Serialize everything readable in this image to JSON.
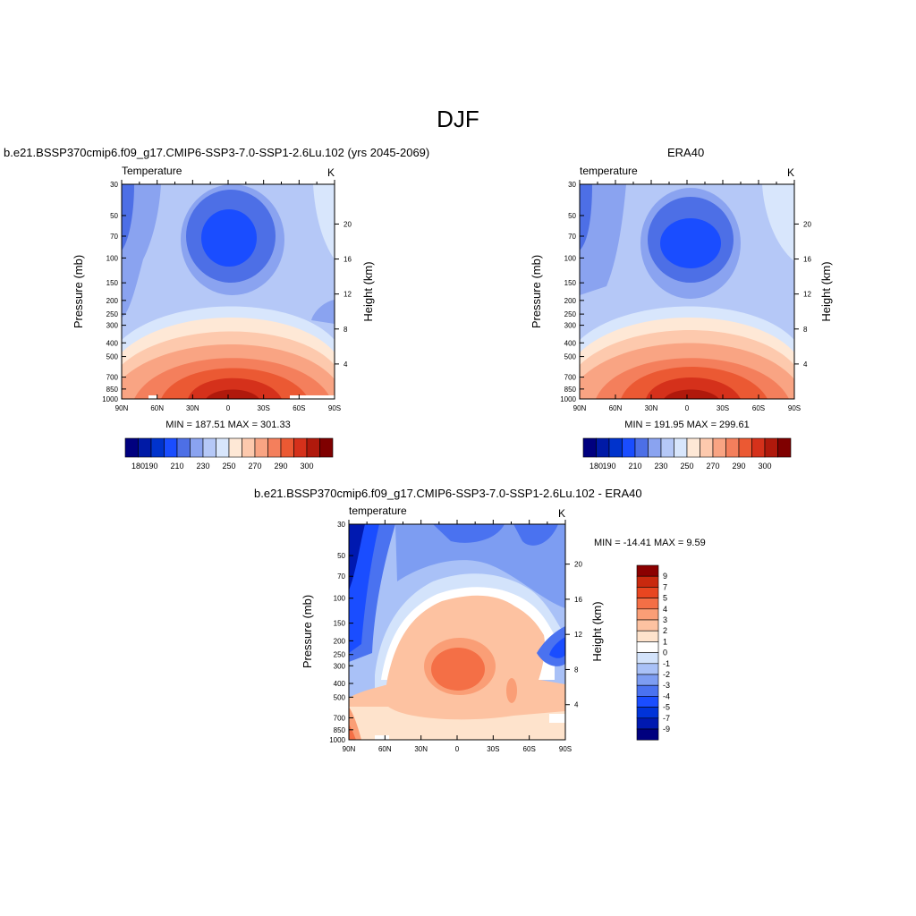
{
  "figure": {
    "title": "DJF"
  },
  "colors": {
    "abs_levels": [
      "#00007f",
      "#001aa6",
      "#0033cc",
      "#1a4dff",
      "#4d6fe6",
      "#8aa3f0",
      "#b5c8f7",
      "#d8e6fc",
      "#fee8d6",
      "#fdc9ad",
      "#f9a483",
      "#f47f5c",
      "#eb5933",
      "#d5311b",
      "#b0190c",
      "#7f0000"
    ],
    "diff_levels": [
      "#00007f",
      "#0019b0",
      "#0033d9",
      "#1a4dff",
      "#4a72f0",
      "#7d9df2",
      "#a9c1f7",
      "#d3e3fb",
      "#ffffff",
      "#fee3cc",
      "#fdc2a1",
      "#fa9e76",
      "#f46f46",
      "#e84620",
      "#c9290e",
      "#8b0000"
    ]
  },
  "chart_data": [
    {
      "type": "heatmap",
      "title": "b.e21.BSSP370cmip6.f09_g17.CMIP6-SSP3-7.0-SSP1-2.6Lu.102 (yrs 2045-2069)",
      "left_label": "Temperature",
      "units": "K",
      "xlabel": "",
      "ylabel": "Pressure (mb)",
      "y2label": "Height (km)",
      "x_ticks": [
        "90N",
        "60N",
        "30N",
        "0",
        "30S",
        "60S",
        "90S"
      ],
      "y_ticks": [
        30,
        50,
        70,
        100,
        150,
        200,
        250,
        300,
        400,
        500,
        700,
        850,
        1000
      ],
      "y_log": true,
      "y2_ticks": [
        20,
        16,
        12,
        8,
        4
      ],
      "min": 187.51,
      "max": 301.33,
      "stats_text": "MIN = 187.51  MAX = 301.33",
      "colorbar_labels": [
        "180",
        "190",
        "210",
        "230",
        "250",
        "270",
        "290",
        "300"
      ],
      "colorbar_orientation": "horizontal"
    },
    {
      "type": "heatmap",
      "title": "ERA40",
      "left_label": "temperature",
      "units": "K",
      "xlabel": "",
      "ylabel": "Pressure (mb)",
      "y2label": "Height (km)",
      "x_ticks": [
        "90N",
        "60N",
        "30N",
        "0",
        "30S",
        "60S",
        "90S"
      ],
      "y_ticks": [
        30,
        50,
        70,
        100,
        150,
        200,
        250,
        300,
        400,
        500,
        700,
        850,
        1000
      ],
      "y_log": true,
      "y2_ticks": [
        20,
        16,
        12,
        8,
        4
      ],
      "min": 191.95,
      "max": 299.61,
      "stats_text": "MIN = 191.95  MAX = 299.61",
      "colorbar_labels": [
        "180",
        "190",
        "210",
        "230",
        "250",
        "270",
        "290",
        "300"
      ],
      "colorbar_orientation": "horizontal"
    },
    {
      "type": "heatmap",
      "title": "b.e21.BSSP370cmip6.f09_g17.CMIP6-SSP3-7.0-SSP1-2.6Lu.102 - ERA40",
      "left_label": "temperature",
      "units": "K",
      "xlabel": "",
      "ylabel": "Pressure (mb)",
      "y2label": "Height (km)",
      "x_ticks": [
        "90N",
        "60N",
        "30N",
        "0",
        "30S",
        "60S",
        "90S"
      ],
      "y_ticks": [
        30,
        50,
        70,
        100,
        150,
        200,
        250,
        300,
        400,
        500,
        700,
        850,
        1000
      ],
      "y_log": true,
      "y2_ticks": [
        20,
        16,
        12,
        8,
        4
      ],
      "min": -14.41,
      "max": 9.59,
      "stats_text": "MIN = -14.41  MAX =   9.59",
      "colorbar_labels": [
        "9",
        "7",
        "5",
        "4",
        "3",
        "2",
        "1",
        "0",
        "-1",
        "-2",
        "-3",
        "-4",
        "-5",
        "-7",
        "-9"
      ],
      "colorbar_orientation": "vertical"
    }
  ]
}
